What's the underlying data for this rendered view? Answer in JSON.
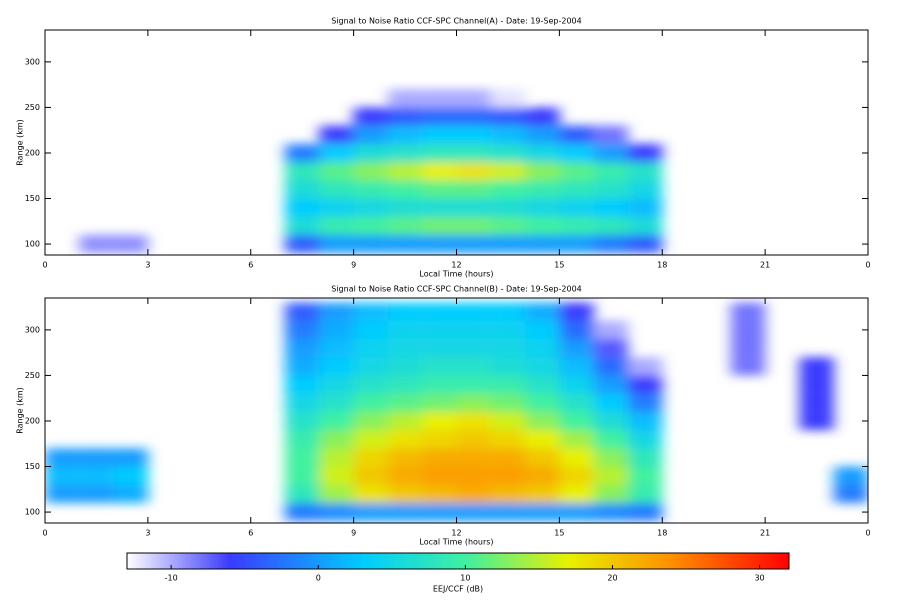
{
  "chart_data": [
    {
      "type": "heatmap",
      "title": "Signal to Noise Ratio CCF-SPC Channel(A) - Date: 19-Sep-2004",
      "xlabel": "Local Time (hours)",
      "ylabel": "Range (km)",
      "xlim": [
        0,
        24
      ],
      "xticks": [
        0,
        3,
        6,
        9,
        12,
        15,
        18,
        21,
        {
          "value": 24,
          "label": "0"
        }
      ],
      "ylim": [
        88,
        335
      ],
      "yticks": [
        100,
        150,
        200,
        250,
        300
      ],
      "x": [
        0.5,
        1.5,
        2.5,
        3.5,
        4.5,
        5.5,
        6.5,
        7.5,
        8.5,
        9.5,
        10.5,
        11.5,
        12.5,
        13.5,
        14.5,
        15.5,
        16.5,
        17.5,
        18.5,
        19.5,
        20.5,
        21.5,
        22.5,
        23.5
      ],
      "y": [
        100,
        120,
        140,
        160,
        180,
        200,
        220,
        240,
        260,
        280,
        300,
        320
      ],
      "z": [
        [
          null,
          null,
          null,
          null,
          null,
          null,
          null,
          null,
          null,
          null,
          null,
          null
        ],
        [
          -9,
          null,
          null,
          null,
          null,
          null,
          null,
          null,
          null,
          null,
          null,
          null
        ],
        [
          -9,
          null,
          null,
          null,
          null,
          null,
          null,
          null,
          null,
          null,
          null,
          null
        ],
        [
          null,
          null,
          null,
          null,
          null,
          null,
          null,
          null,
          null,
          null,
          null,
          null
        ],
        [
          null,
          null,
          null,
          null,
          null,
          null,
          null,
          null,
          null,
          null,
          null,
          null
        ],
        [
          null,
          null,
          null,
          null,
          null,
          null,
          null,
          null,
          null,
          null,
          null,
          null
        ],
        [
          null,
          null,
          null,
          null,
          null,
          null,
          null,
          null,
          null,
          null,
          null,
          null
        ],
        [
          -4,
          6,
          3,
          6,
          8,
          -2,
          null,
          null,
          null,
          null,
          null,
          null
        ],
        [
          0,
          9,
          4,
          8,
          11,
          3,
          -6,
          null,
          null,
          null,
          null,
          null
        ],
        [
          0,
          10,
          5,
          9,
          13,
          6,
          0,
          -6,
          null,
          null,
          null,
          null
        ],
        [
          0,
          11,
          6,
          10,
          15,
          7,
          2,
          -4,
          -10,
          null,
          null,
          null
        ],
        [
          0,
          12,
          6,
          11,
          17,
          8,
          3,
          -3,
          -10,
          null,
          null,
          null
        ],
        [
          0,
          12,
          6,
          11,
          18,
          8,
          3,
          -3,
          -10,
          null,
          null,
          null
        ],
        [
          0,
          11,
          6,
          10,
          16,
          7,
          2,
          -4,
          -12,
          null,
          null,
          null
        ],
        [
          0,
          10,
          5,
          9,
          13,
          5,
          0,
          -6,
          null,
          null,
          null,
          null
        ],
        [
          0,
          9,
          4,
          8,
          11,
          3,
          -4,
          null,
          null,
          null,
          null,
          null
        ],
        [
          -2,
          8,
          3,
          7,
          9,
          0,
          -8,
          null,
          null,
          null,
          null,
          null
        ],
        [
          -4,
          6,
          2,
          5,
          7,
          -6,
          null,
          null,
          null,
          null,
          null,
          null
        ],
        [
          null,
          null,
          null,
          null,
          null,
          null,
          null,
          null,
          null,
          null,
          null,
          null
        ],
        [
          null,
          null,
          null,
          null,
          null,
          null,
          null,
          null,
          null,
          null,
          null,
          null
        ],
        [
          null,
          null,
          null,
          null,
          null,
          null,
          null,
          null,
          null,
          null,
          null,
          null
        ],
        [
          null,
          null,
          null,
          null,
          null,
          null,
          null,
          null,
          null,
          null,
          null,
          null
        ],
        [
          null,
          null,
          null,
          null,
          null,
          null,
          null,
          null,
          null,
          null,
          null,
          null
        ],
        [
          null,
          null,
          null,
          null,
          null,
          null,
          null,
          null,
          null,
          null,
          null,
          null
        ]
      ]
    },
    {
      "type": "heatmap",
      "title": "Signal to Noise Ratio CCF-SPC Channel(B) - Date: 19-Sep-2004",
      "xlabel": "Local Time (hours)",
      "ylabel": "Range (km)",
      "xlim": [
        0,
        24
      ],
      "xticks": [
        0,
        3,
        6,
        9,
        12,
        15,
        18,
        21,
        {
          "value": 24,
          "label": "0"
        }
      ],
      "ylim": [
        88,
        335
      ],
      "yticks": [
        100,
        150,
        200,
        250,
        300
      ],
      "x": [
        0.5,
        1.5,
        2.5,
        3.5,
        4.5,
        5.5,
        6.5,
        7.5,
        8.5,
        9.5,
        10.5,
        11.5,
        12.5,
        13.5,
        14.5,
        15.5,
        16.5,
        17.5,
        18.5,
        19.5,
        20.5,
        21.5,
        22.5,
        23.5
      ],
      "y": [
        100,
        120,
        140,
        160,
        180,
        200,
        220,
        240,
        260,
        280,
        300,
        320
      ],
      "z": [
        [
          null,
          0,
          2,
          0,
          null,
          null,
          null,
          null,
          null,
          null,
          null,
          null
        ],
        [
          null,
          0,
          2,
          0,
          null,
          null,
          null,
          null,
          null,
          null,
          null,
          null
        ],
        [
          null,
          1,
          3,
          0,
          null,
          null,
          null,
          null,
          null,
          null,
          null,
          null
        ],
        [
          null,
          null,
          null,
          null,
          null,
          null,
          null,
          null,
          null,
          null,
          null,
          null
        ],
        [
          null,
          null,
          null,
          null,
          null,
          null,
          null,
          null,
          null,
          null,
          null,
          null
        ],
        [
          null,
          null,
          null,
          null,
          null,
          null,
          null,
          null,
          null,
          null,
          null,
          null
        ],
        [
          null,
          null,
          null,
          null,
          null,
          null,
          null,
          null,
          null,
          null,
          null,
          null
        ],
        [
          -2,
          8,
          10,
          10,
          9,
          7,
          5,
          3,
          1,
          0,
          -2,
          -4
        ],
        [
          -1,
          14,
          16,
          15,
          13,
          10,
          7,
          5,
          3,
          2,
          1,
          0
        ],
        [
          0,
          18,
          20,
          19,
          16,
          13,
          10,
          7,
          5,
          4,
          3,
          2
        ],
        [
          0,
          20,
          22,
          21,
          18,
          15,
          11,
          8,
          6,
          5,
          4,
          3
        ],
        [
          0,
          21,
          23,
          22,
          19,
          17,
          12,
          9,
          7,
          5,
          4,
          3
        ],
        [
          0,
          22,
          23,
          22,
          20,
          18,
          13,
          9,
          7,
          5,
          4,
          3
        ],
        [
          0,
          21,
          23,
          22,
          19,
          16,
          12,
          9,
          6,
          5,
          4,
          3
        ],
        [
          0,
          20,
          22,
          20,
          17,
          13,
          10,
          7,
          5,
          4,
          3,
          1
        ],
        [
          0,
          17,
          19,
          17,
          14,
          10,
          7,
          4,
          2,
          0,
          -3,
          -6
        ],
        [
          -1,
          13,
          15,
          13,
          10,
          6,
          3,
          0,
          -3,
          -7,
          -10,
          null
        ],
        [
          -2,
          9,
          10,
          8,
          5,
          2,
          -2,
          -6,
          -10,
          null,
          null,
          null
        ],
        [
          null,
          null,
          null,
          null,
          null,
          null,
          null,
          null,
          null,
          null,
          null,
          null
        ],
        [
          null,
          null,
          null,
          null,
          null,
          null,
          null,
          null,
          null,
          null,
          null,
          null
        ],
        [
          null,
          null,
          null,
          null,
          null,
          null,
          null,
          null,
          -8,
          -8,
          -8,
          -8
        ],
        [
          null,
          null,
          null,
          null,
          null,
          null,
          null,
          null,
          null,
          null,
          null,
          null
        ],
        [
          null,
          null,
          null,
          null,
          null,
          -6,
          -6,
          -6,
          -6,
          null,
          null,
          null
        ],
        [
          null,
          -2,
          0,
          null,
          null,
          null,
          null,
          null,
          null,
          null,
          null,
          null
        ]
      ]
    }
  ],
  "colorbar": {
    "label": "EEJ/CCF (dB)",
    "lim": [
      -13,
      32
    ],
    "ticks": [
      -10,
      0,
      10,
      20,
      30
    ],
    "stops": [
      [
        -13,
        "#ffffff"
      ],
      [
        -6,
        "#3b3bff"
      ],
      [
        3,
        "#00ccff"
      ],
      [
        10,
        "#40f0a0"
      ],
      [
        17,
        "#e8f000"
      ],
      [
        24,
        "#ff9000"
      ],
      [
        32,
        "#ff0000"
      ]
    ]
  }
}
